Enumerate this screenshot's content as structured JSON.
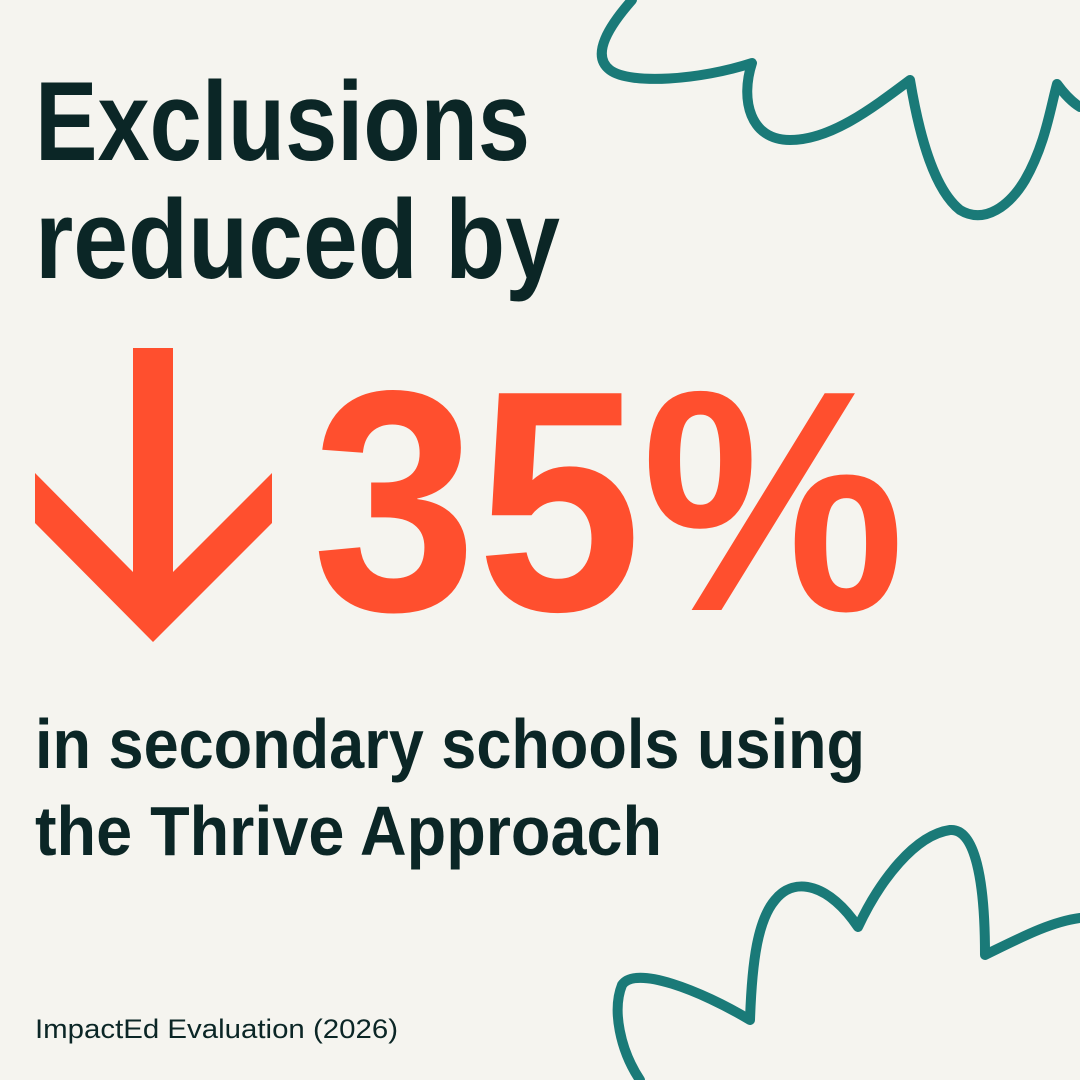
{
  "headline": {
    "lines": [
      "Exclusions",
      "reduced by"
    ]
  },
  "stat": "35%",
  "subtext": {
    "lines": [
      "in secondary schools using",
      "the Thrive Approach"
    ]
  },
  "source": "ImpactEd Evaluation (2026)"
}
